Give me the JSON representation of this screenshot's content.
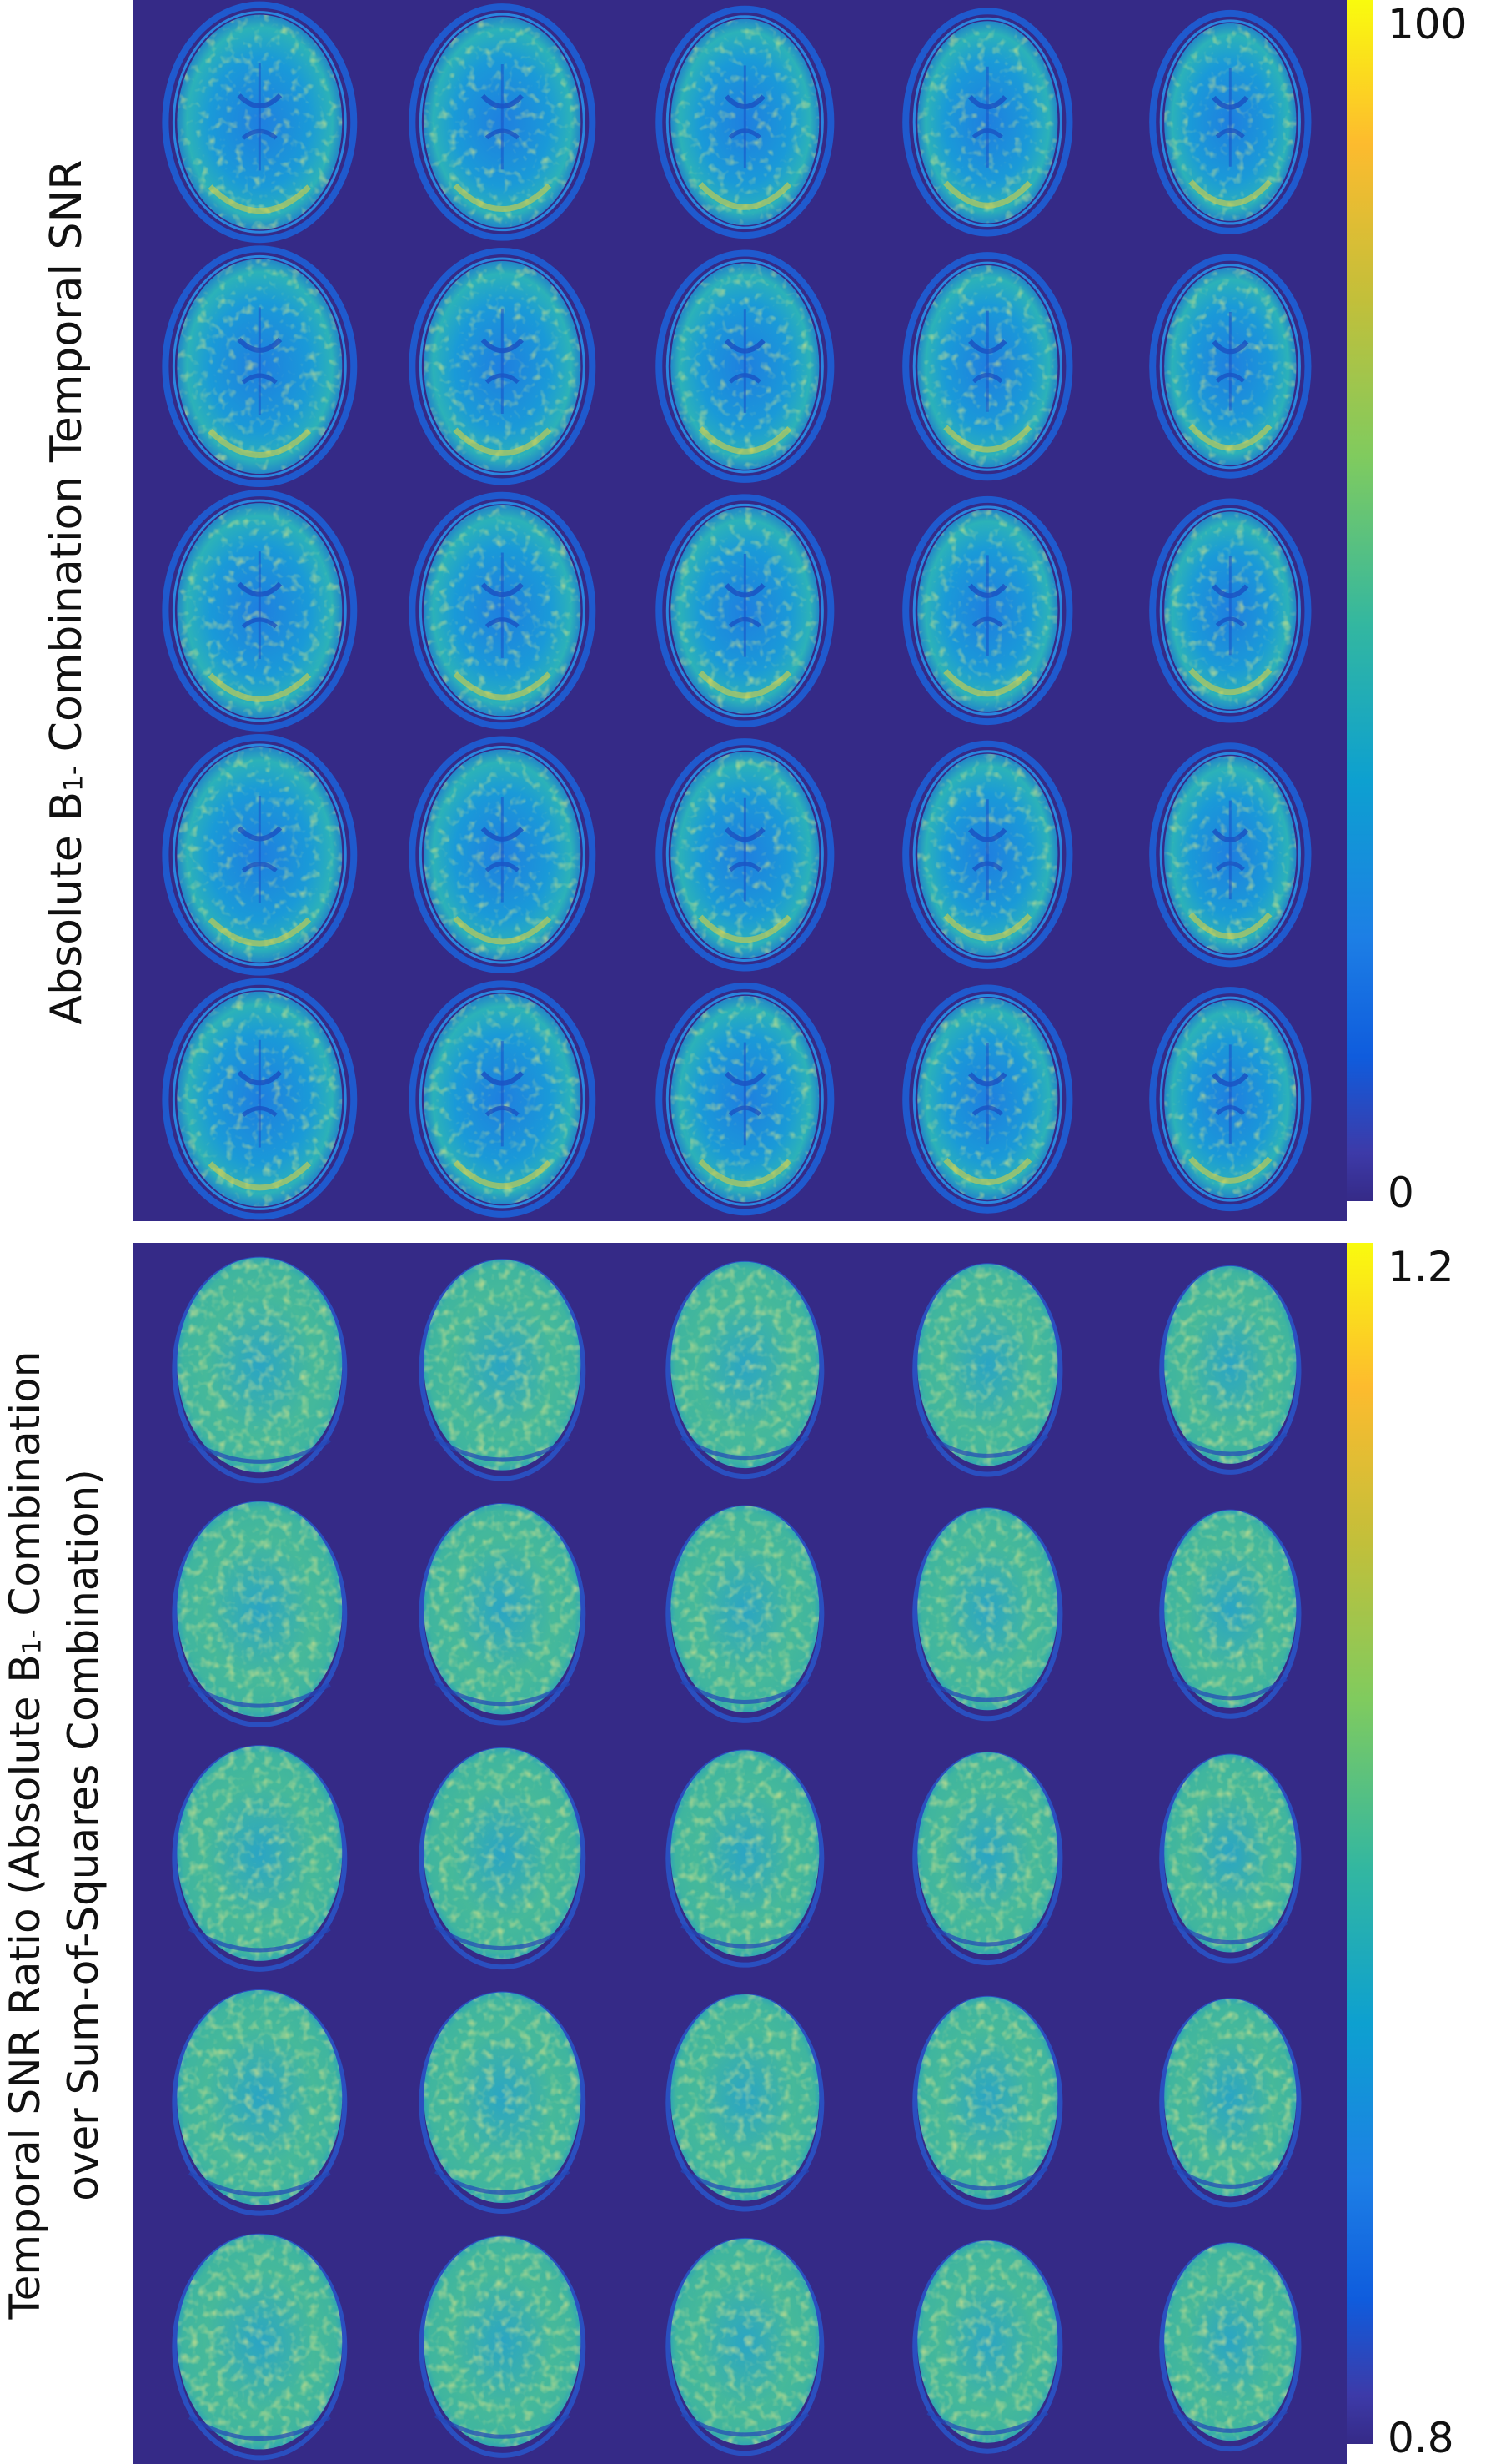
{
  "top_panel": {
    "ylabel_before": "Absolute B",
    "ylabel_sub": "1-",
    "ylabel_after": " Combination Temporal SNR",
    "colorbar": {
      "max_label": "100",
      "min_label": "0"
    },
    "grid": {
      "rows": 5,
      "cols": 5
    }
  },
  "bottom_panel": {
    "ylabel_line1_before": "Temporal SNR Ratio (Absolute B",
    "ylabel_line1_sub": "1-",
    "ylabel_line1_after": " Combination",
    "ylabel_line2": "over Sum-of-Squares Combination)",
    "colorbar": {
      "max_label": "1.2",
      "min_label": "0.8"
    },
    "grid": {
      "rows": 5,
      "cols": 5
    }
  },
  "colors": {
    "background": "#352a87",
    "parula_low": "#0f5cdd",
    "parula_mid": "#33b7a0",
    "parula_high": "#f9fb0e"
  }
}
